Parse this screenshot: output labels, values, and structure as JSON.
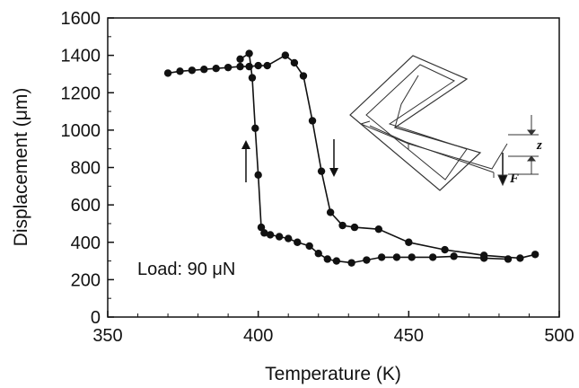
{
  "chart_data": {
    "type": "scatter",
    "xlabel": "Temperature (K)",
    "ylabel": "Displacement (μm)",
    "xlim": [
      350,
      500
    ],
    "ylim": [
      0,
      1600
    ],
    "x_ticks": [
      "350",
      "400",
      "450",
      "500"
    ],
    "y_ticks": [
      "0",
      "200",
      "400",
      "600",
      "800",
      "1000",
      "1200",
      "1400",
      "1600"
    ],
    "grid": false,
    "annotation": "Load: 90 μN",
    "inset_labels": {
      "z": "z",
      "F": "F"
    },
    "series": [
      {
        "direction": "heating",
        "x": [
          370,
          374,
          378,
          382,
          386,
          390,
          394,
          397,
          400,
          403,
          409,
          412,
          415,
          418,
          421,
          424,
          428,
          432,
          440,
          450,
          462,
          475,
          487,
          492
        ],
        "y": [
          1305,
          1315,
          1320,
          1325,
          1330,
          1335,
          1340,
          1340,
          1345,
          1345,
          1400,
          1360,
          1290,
          1050,
          780,
          560,
          490,
          480,
          470,
          400,
          360,
          330,
          315,
          335
        ]
      },
      {
        "direction": "cooling",
        "x": [
          483,
          475,
          465,
          458,
          451,
          446,
          441,
          436,
          431,
          426,
          423,
          420,
          417,
          413,
          410,
          407,
          404,
          402,
          401,
          400,
          399,
          398,
          397,
          394
        ],
        "y": [
          310,
          315,
          325,
          320,
          320,
          320,
          320,
          305,
          290,
          300,
          310,
          340,
          380,
          400,
          420,
          430,
          440,
          450,
          480,
          760,
          1010,
          1280,
          1410,
          1380
        ]
      }
    ]
  }
}
